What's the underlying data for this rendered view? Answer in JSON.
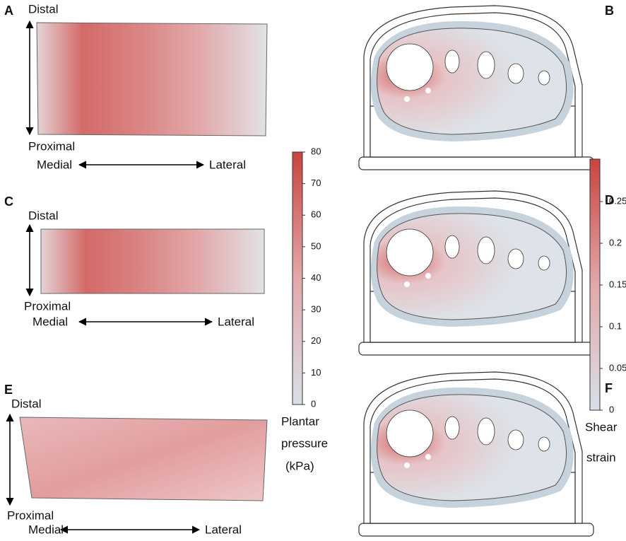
{
  "panels": [
    {
      "label": "A",
      "top": "Distal",
      "bottom": "Proximal",
      "left": "Medial",
      "right": "Lateral"
    },
    {
      "label": "C",
      "top": "Distal",
      "bottom": "Proximal",
      "left": "Medial",
      "right": "Lateral"
    },
    {
      "label": "E",
      "top": "Distal",
      "bottom": "Proximal",
      "left": "Medial",
      "right": "Lateral"
    }
  ],
  "right_panels": [
    {
      "label": "B"
    },
    {
      "label": "D"
    },
    {
      "label": "F"
    }
  ],
  "pressure_bar": {
    "ticks": [
      0,
      10,
      20,
      30,
      40,
      50,
      60,
      70,
      80
    ],
    "title": [
      "Plantar",
      "pressure",
      "(kPa)"
    ]
  },
  "shear_bar": {
    "ticks": [
      0,
      0.05,
      0.1,
      0.15,
      0.2,
      0.25
    ],
    "title": [
      "Shear",
      "strain"
    ]
  }
}
